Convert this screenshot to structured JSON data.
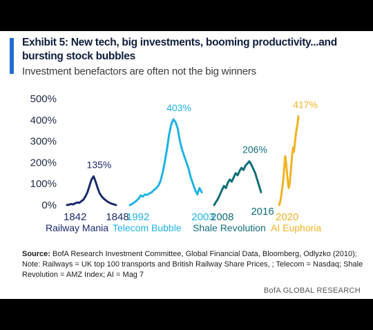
{
  "title": "Exhibit 5: New tech, big investments, booming productivity...and bursting stock bubbles",
  "subtitle": "Investment benefactors are often not the big winners",
  "colors": {
    "railway": "#1a2a6c",
    "telecom": "#1fb2e6",
    "shale": "#0f6d78",
    "ai": "#f0b323",
    "accent": "#1f6fd1"
  },
  "chart_data": {
    "type": "line",
    "y_ticks": [
      "0%",
      "100%",
      "200%",
      "300%",
      "400%",
      "500%"
    ],
    "ylim": [
      0,
      500
    ],
    "series": [
      {
        "name": "Railway Mania",
        "key": "railway",
        "start_label": "1842",
        "end_label": "1848",
        "peak_label": "135%",
        "values": [
          0,
          2,
          5,
          3,
          8,
          12,
          10,
          18,
          25,
          40,
          60,
          90,
          120,
          135,
          110,
          80,
          55,
          40,
          30,
          22,
          15,
          10,
          6,
          3,
          0
        ]
      },
      {
        "name": "Telecom Bubble",
        "key": "telecom",
        "start_label": "1992",
        "end_label": "2003",
        "peak_label": "403%",
        "values": [
          0,
          5,
          12,
          20,
          30,
          45,
          40,
          50,
          48,
          55,
          60,
          70,
          78,
          90,
          110,
          150,
          200,
          260,
          330,
          380,
          403,
          390,
          360,
          300,
          260,
          230,
          200,
          170,
          130,
          100,
          70,
          50,
          80,
          60
        ]
      },
      {
        "name": "Shale Revolution",
        "key": "shale",
        "start_label": "2008",
        "end_label": "2016",
        "peak_label": "206%",
        "values": [
          0,
          15,
          30,
          50,
          70,
          90,
          80,
          105,
          120,
          110,
          130,
          150,
          140,
          160,
          175,
          165,
          185,
          195,
          206,
          190,
          170,
          150,
          120,
          90,
          60
        ]
      },
      {
        "name": "AI Euphoria",
        "key": "ai",
        "start_label": "2020",
        "end_label": "",
        "peak_label": "417%",
        "values": [
          0,
          10,
          30,
          60,
          90,
          130,
          180,
          230,
          200,
          150,
          110,
          80,
          100,
          140,
          190,
          240,
          270,
          250,
          290,
          330,
          360,
          380,
          417
        ]
      }
    ]
  },
  "notes": {
    "source_label": "Source:",
    "source_text": " BofA Research Investment Committee, Global Financial Data, Bloomberg, Odlyzko (2010); Note: Railways = UK top 100 transports and British Railway Share Prices, ; Telecom = Nasdaq; Shale Revolution = AMZ Index; AI = Mag 7"
  },
  "brand": "BofA GLOBAL RESEARCH"
}
